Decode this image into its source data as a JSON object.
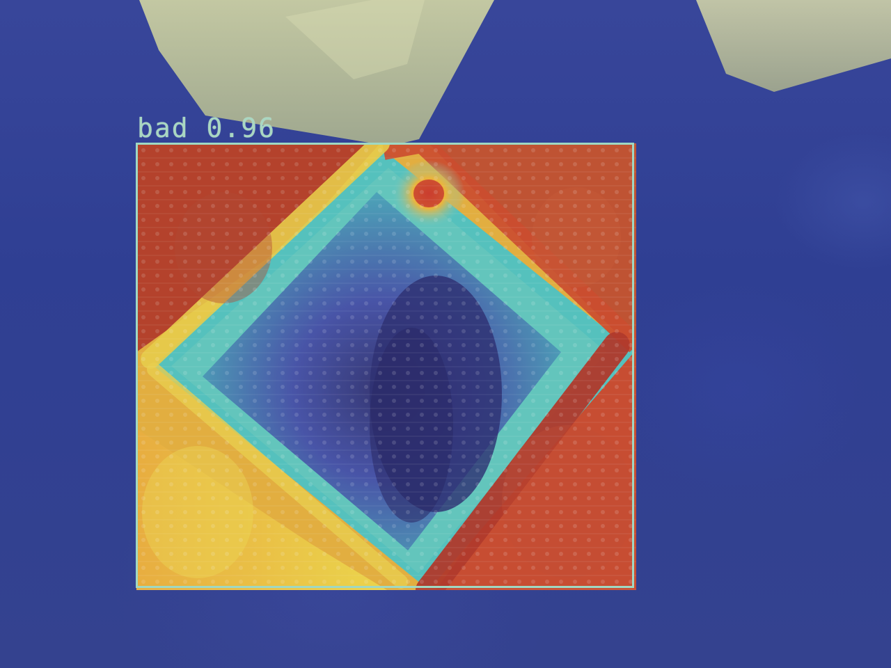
{
  "detection": {
    "class_label": "bad",
    "confidence": "0.96"
  },
  "overlay": {
    "type": "heatmap",
    "colormap": "jet"
  }
}
